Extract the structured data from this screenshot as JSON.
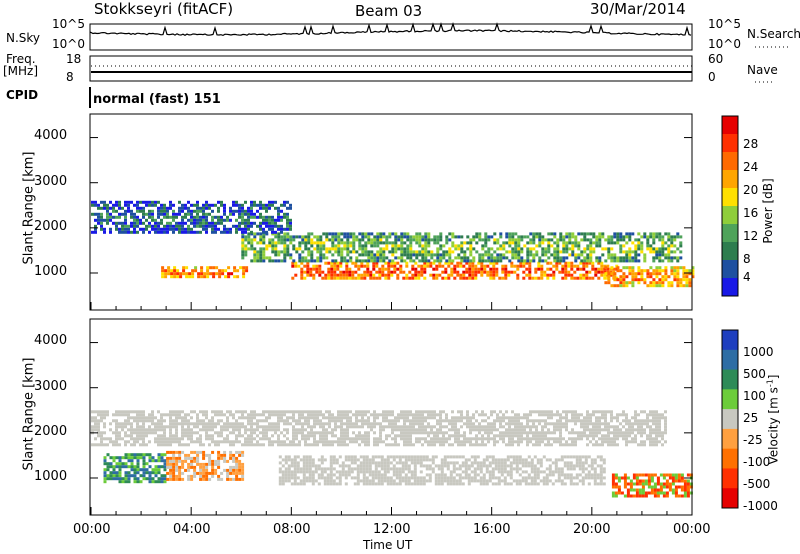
{
  "header": {
    "title": "Stokkseyri (fitACF)",
    "beam": "Beam 03",
    "date": "30/Mar/2014"
  },
  "top_panels": {
    "nsky_label": "N.Sky",
    "nsky_ticks": [
      "10^5",
      "10^0"
    ],
    "nsearch_label": "N.Search",
    "nsearch_ticks": [
      "10^5",
      "10^0"
    ],
    "freq_label": "Freq.",
    "freq_unit": "[MHz]",
    "freq_ticks": [
      "18",
      "8"
    ],
    "nave_label": "Nave",
    "nave_ticks": [
      "60",
      "0"
    ],
    "cpid_label": "CPID",
    "cpid_value": "normal (fast) 151"
  },
  "chart_data": [
    {
      "type": "heatmap",
      "name": "power",
      "ylabel": "Slant Range [km]",
      "ylim": [
        180,
        4500
      ],
      "yticks": [
        "4000",
        "3000",
        "2000",
        "1000"
      ],
      "xlim": [
        "00:00",
        "24:00"
      ],
      "colorbar_label": "Power [dB]",
      "colorbar_ticks": [
        "28",
        "24",
        "20",
        "16",
        "12",
        "8",
        "4"
      ],
      "colors": [
        "#1919e6",
        "#1e50a0",
        "#2e7d4f",
        "#4fa35a",
        "#8fce3a",
        "#ffe000",
        "#ffa500",
        "#ff6a00",
        "#ff3000",
        "#e60000"
      ],
      "bands": [
        {
          "range_km": [
            900,
            1150
          ],
          "hours": [
            2.8,
            6.2
          ],
          "level": 0.8
        },
        {
          "range_km": [
            900,
            1250
          ],
          "hours": [
            8,
            21
          ],
          "level": 0.85
        },
        {
          "range_km": [
            1300,
            1900
          ],
          "hours": [
            6,
            23.5
          ],
          "level": 0.45
        },
        {
          "range_km": [
            1900,
            2600
          ],
          "hours": [
            0,
            8
          ],
          "level": 0.25
        },
        {
          "range_km": [
            700,
            1150
          ],
          "hours": [
            20.5,
            24
          ],
          "level": 0.75
        }
      ]
    },
    {
      "type": "heatmap",
      "name": "velocity",
      "ylabel": "Slant Range [km]",
      "ylim": [
        180,
        4500
      ],
      "yticks": [
        "4000",
        "3000",
        "2000",
        "1000"
      ],
      "xlabel": "Time UT",
      "xticks": [
        "00:00",
        "04:00",
        "08:00",
        "12:00",
        "16:00",
        "20:00",
        "00:00"
      ],
      "colorbar_label": "Velocity [m s",
      "colorbar_label_sup": "-1",
      "colorbar_label_end": "]",
      "colorbar_ticks": [
        "1000",
        "500",
        "100",
        "25",
        "-25",
        "-100",
        "-500",
        "-1000"
      ],
      "colors": [
        "#1f3fbf",
        "#2e6da4",
        "#2e8b57",
        "#6ccc3a",
        "#c8c8c0",
        "#ffa040",
        "#ff7000",
        "#ff3000",
        "#e60000"
      ]
    }
  ]
}
